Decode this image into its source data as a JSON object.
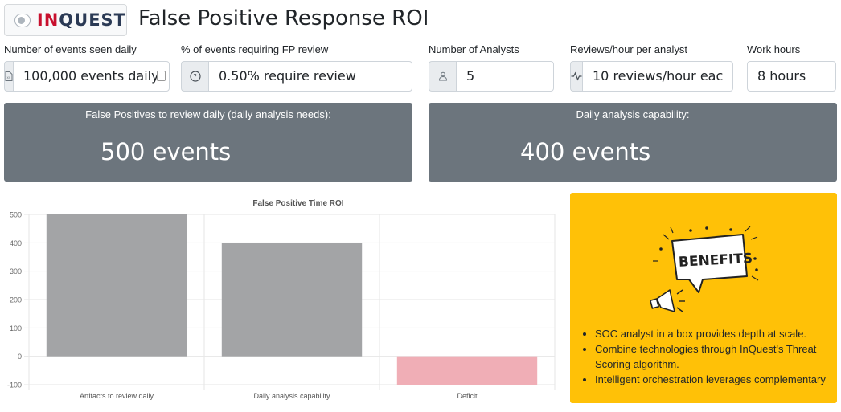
{
  "header": {
    "logo_prefix": "IN",
    "logo_q": "Q",
    "logo_suffix": "UEST",
    "title": "False Positive Response ROI"
  },
  "fields": [
    {
      "label": "Number of events seen daily",
      "value": "100,000 events daily",
      "icon": "file-icon"
    },
    {
      "label": "% of events requiring FP review",
      "value": "0.50% require review",
      "icon": "question-circle-icon"
    },
    {
      "label": "Number of Analysts",
      "value": "5",
      "icon": "person-icon"
    },
    {
      "label": "Reviews/hour per analyst",
      "value": "10 reviews/hour eac",
      "icon": "activity-icon"
    },
    {
      "label": "Work hours",
      "value": "8 hours"
    }
  ],
  "metrics": {
    "needs_label": "False Positives to review daily (daily analysis needs):",
    "needs_value": "500 events",
    "capability_label": "Daily analysis capability:",
    "capability_value": "400 events"
  },
  "benefits": {
    "graphic_text": "BENEFITS",
    "items": [
      "SOC analyst in a box provides depth at scale.",
      "Combine technologies through InQuest's Threat Scoring algorithm.",
      "Intelligent orchestration leverages complementary"
    ]
  },
  "colors": {
    "metric_bg": "#6c757d",
    "bar_positive": "#a3a4a6",
    "bar_negative": "#f0aeb6",
    "benefits_bg": "#ffc107"
  },
  "chart_data": {
    "type": "bar",
    "title": "False Positive Time ROI",
    "categories": [
      "Artifacts to review daily",
      "Daily analysis capability",
      "Deficit"
    ],
    "values": [
      500,
      400,
      -100
    ],
    "ylim": [
      -100,
      500
    ],
    "yticks": [
      "500",
      "400",
      "300",
      "200",
      "100",
      "0",
      "-100"
    ],
    "grid": true
  }
}
